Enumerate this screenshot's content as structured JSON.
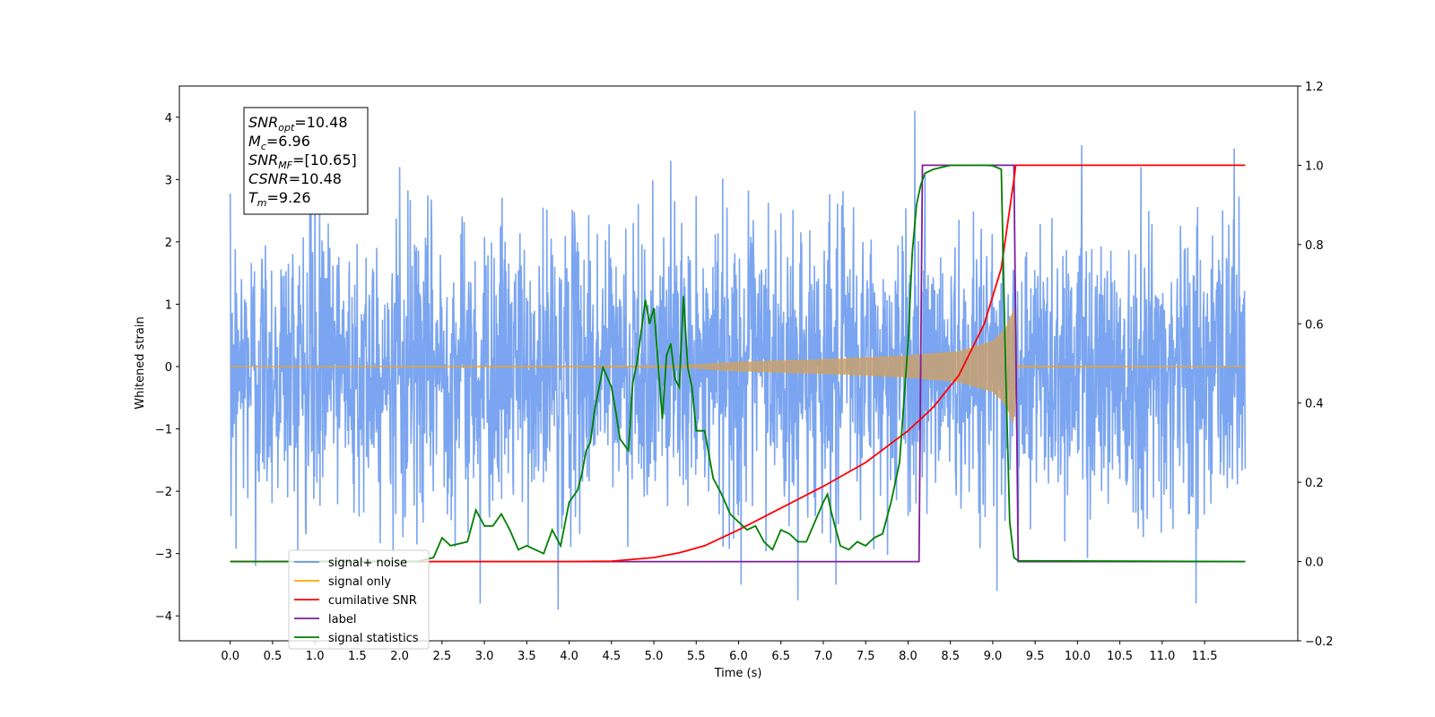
{
  "chart_data": {
    "type": "line",
    "xlabel": "Time (s)",
    "ylabel": "Whitened strain",
    "xlim": [
      -0.6,
      12.6
    ],
    "ylim": [
      -4.4,
      4.5
    ],
    "y2lim": [
      -0.2,
      1.2
    ],
    "x_ticks": [
      0.0,
      0.5,
      1.0,
      1.5,
      2.0,
      2.5,
      3.0,
      3.5,
      4.0,
      4.5,
      5.0,
      5.5,
      6.0,
      6.5,
      7.0,
      7.5,
      8.0,
      8.5,
      9.0,
      9.5,
      10.0,
      10.5,
      11.0,
      11.5
    ],
    "x_tick_labels": [
      "0.0",
      "0.5",
      "1.0",
      "1.5",
      "2.0",
      "2.5",
      "3.0",
      "3.5",
      "4.0",
      "4.5",
      "5.0",
      "5.5",
      "6.0",
      "6.5",
      "7.0",
      "7.5",
      "8.0",
      "8.5",
      "9.0",
      "9.5",
      "10.0",
      "10.5",
      "11.0",
      "11.5"
    ],
    "y_ticks": [
      -4,
      -3,
      -2,
      -1,
      0,
      1,
      2,
      3,
      4
    ],
    "y_tick_labels": [
      "−4",
      "−3",
      "−2",
      "−1",
      "0",
      "1",
      "2",
      "3",
      "4"
    ],
    "y2_ticks": [
      -0.2,
      0.0,
      0.2,
      0.4,
      0.6,
      0.8,
      1.0,
      1.2
    ],
    "y2_tick_labels": [
      "−0.2",
      "0.0",
      "0.2",
      "0.4",
      "0.6",
      "0.8",
      "1.0",
      "1.2"
    ],
    "grid": false,
    "legend_placement": "lower-left",
    "noise": {
      "x_range": [
        0.0,
        11.98
      ],
      "envelope": [
        1.6,
        2.6
      ],
      "peak_points": [
        {
          "x": 0.3,
          "y": -3.2
        },
        {
          "x": 2.95,
          "y": -3.8
        },
        {
          "x": 3.87,
          "y": -3.9
        },
        {
          "x": 8.08,
          "y": 4.1
        },
        {
          "x": 9.05,
          "y": -3.6
        },
        {
          "x": 10.05,
          "y": 3.55
        },
        {
          "x": 11.85,
          "y": 3.5
        },
        {
          "x": 11.4,
          "y": -3.8
        },
        {
          "x": 6.7,
          "y": -3.75
        },
        {
          "x": 6.03,
          "y": -3.5
        },
        {
          "x": 7.15,
          "y": -3.5
        },
        {
          "x": 1.0,
          "y": 3.25
        },
        {
          "x": 2.0,
          "y": 3.2
        },
        {
          "x": 5.2,
          "y": 3.3
        },
        {
          "x": 10.75,
          "y": 3.2
        }
      ]
    },
    "signal_envelope": [
      {
        "x": 0.0,
        "a": 0.005
      },
      {
        "x": 5.3,
        "a": 0.01
      },
      {
        "x": 6.0,
        "a": 0.07
      },
      {
        "x": 7.0,
        "a": 0.11
      },
      {
        "x": 8.0,
        "a": 0.17
      },
      {
        "x": 8.6,
        "a": 0.24
      },
      {
        "x": 9.0,
        "a": 0.4
      },
      {
        "x": 9.15,
        "a": 0.6
      },
      {
        "x": 9.26,
        "a": 0.95
      },
      {
        "x": 9.27,
        "a": 0.01
      },
      {
        "x": 11.98,
        "a": 0.005
      }
    ],
    "series": [
      {
        "name": "cumilative SNR",
        "axis": "right",
        "color": "#ff0000",
        "x": [
          0.0,
          3.0,
          4.0,
          4.5,
          5.0,
          5.3,
          5.6,
          6.0,
          6.5,
          7.0,
          7.5,
          8.0,
          8.3,
          8.6,
          8.9,
          9.1,
          9.26,
          9.27,
          11.98
        ],
        "y": [
          0.0,
          0.0,
          0.0,
          0.001,
          0.01,
          0.022,
          0.04,
          0.08,
          0.135,
          0.19,
          0.25,
          0.33,
          0.39,
          0.47,
          0.6,
          0.74,
          0.98,
          1.0,
          1.0
        ]
      },
      {
        "name": "label",
        "axis": "right",
        "color": "#7e1e9c",
        "x": [
          0.0,
          8.13,
          8.17,
          9.25,
          9.3,
          11.98
        ],
        "y": [
          0.0,
          0.0,
          1.0,
          1.0,
          0.0,
          0.0
        ]
      },
      {
        "name": "signal statistics",
        "axis": "right",
        "color": "#008000",
        "x": [
          0.0,
          2.2,
          2.4,
          2.5,
          2.6,
          2.8,
          2.9,
          3.0,
          3.1,
          3.2,
          3.3,
          3.4,
          3.5,
          3.6,
          3.7,
          3.8,
          3.9,
          4.0,
          4.1,
          4.15,
          4.2,
          4.25,
          4.3,
          4.4,
          4.5,
          4.55,
          4.6,
          4.7,
          4.75,
          4.8,
          4.9,
          4.95,
          5.0,
          5.1,
          5.15,
          5.2,
          5.25,
          5.3,
          5.35,
          5.4,
          5.45,
          5.5,
          5.6,
          5.7,
          5.8,
          5.9,
          6.0,
          6.1,
          6.2,
          6.3,
          6.4,
          6.5,
          6.6,
          6.7,
          6.8,
          6.9,
          7.0,
          7.05,
          7.1,
          7.2,
          7.3,
          7.4,
          7.5,
          7.6,
          7.7,
          7.8,
          7.9,
          8.0,
          8.05,
          8.1,
          8.15,
          8.2,
          8.3,
          8.4,
          8.5,
          8.7,
          8.9,
          9.0,
          9.1,
          9.15,
          9.2,
          9.25,
          9.3,
          11.98
        ],
        "y": [
          0.0,
          0.0,
          0.01,
          0.06,
          0.04,
          0.05,
          0.13,
          0.09,
          0.09,
          0.12,
          0.08,
          0.03,
          0.04,
          0.03,
          0.02,
          0.08,
          0.04,
          0.15,
          0.18,
          0.22,
          0.28,
          0.3,
          0.38,
          0.49,
          0.44,
          0.38,
          0.31,
          0.28,
          0.45,
          0.5,
          0.66,
          0.6,
          0.64,
          0.36,
          0.52,
          0.55,
          0.46,
          0.44,
          0.67,
          0.49,
          0.44,
          0.33,
          0.33,
          0.21,
          0.17,
          0.12,
          0.1,
          0.08,
          0.09,
          0.05,
          0.03,
          0.08,
          0.07,
          0.05,
          0.05,
          0.1,
          0.15,
          0.17,
          0.12,
          0.04,
          0.03,
          0.05,
          0.04,
          0.06,
          0.07,
          0.15,
          0.25,
          0.55,
          0.78,
          0.9,
          0.95,
          0.98,
          0.99,
          0.995,
          1.0,
          1.0,
          1.0,
          0.999,
          0.99,
          0.5,
          0.1,
          0.01,
          0.002,
          0.0
        ]
      }
    ],
    "legend": [
      {
        "label": "signal+ noise",
        "color": "#6495ed"
      },
      {
        "label": "signal only",
        "color": "#ffa500"
      },
      {
        "label": "cumilative SNR",
        "color": "#ff0000"
      },
      {
        "label": "label",
        "color": "#7e1e9c"
      },
      {
        "label": "signal statistics",
        "color": "#008000"
      }
    ],
    "annotation_box": {
      "lines": [
        {
          "main": "SNR",
          "sub": "opt",
          "rest": "=10.48"
        },
        {
          "main": "M",
          "sub": "c",
          "rest": "=6.96"
        },
        {
          "main": "SNR",
          "sub": "MF",
          "rest": "=[10.65]"
        },
        {
          "main": "CSNR",
          "sub": "",
          "rest": "=10.48"
        },
        {
          "main": "T",
          "sub": "m",
          "rest": "=9.26"
        }
      ]
    }
  }
}
